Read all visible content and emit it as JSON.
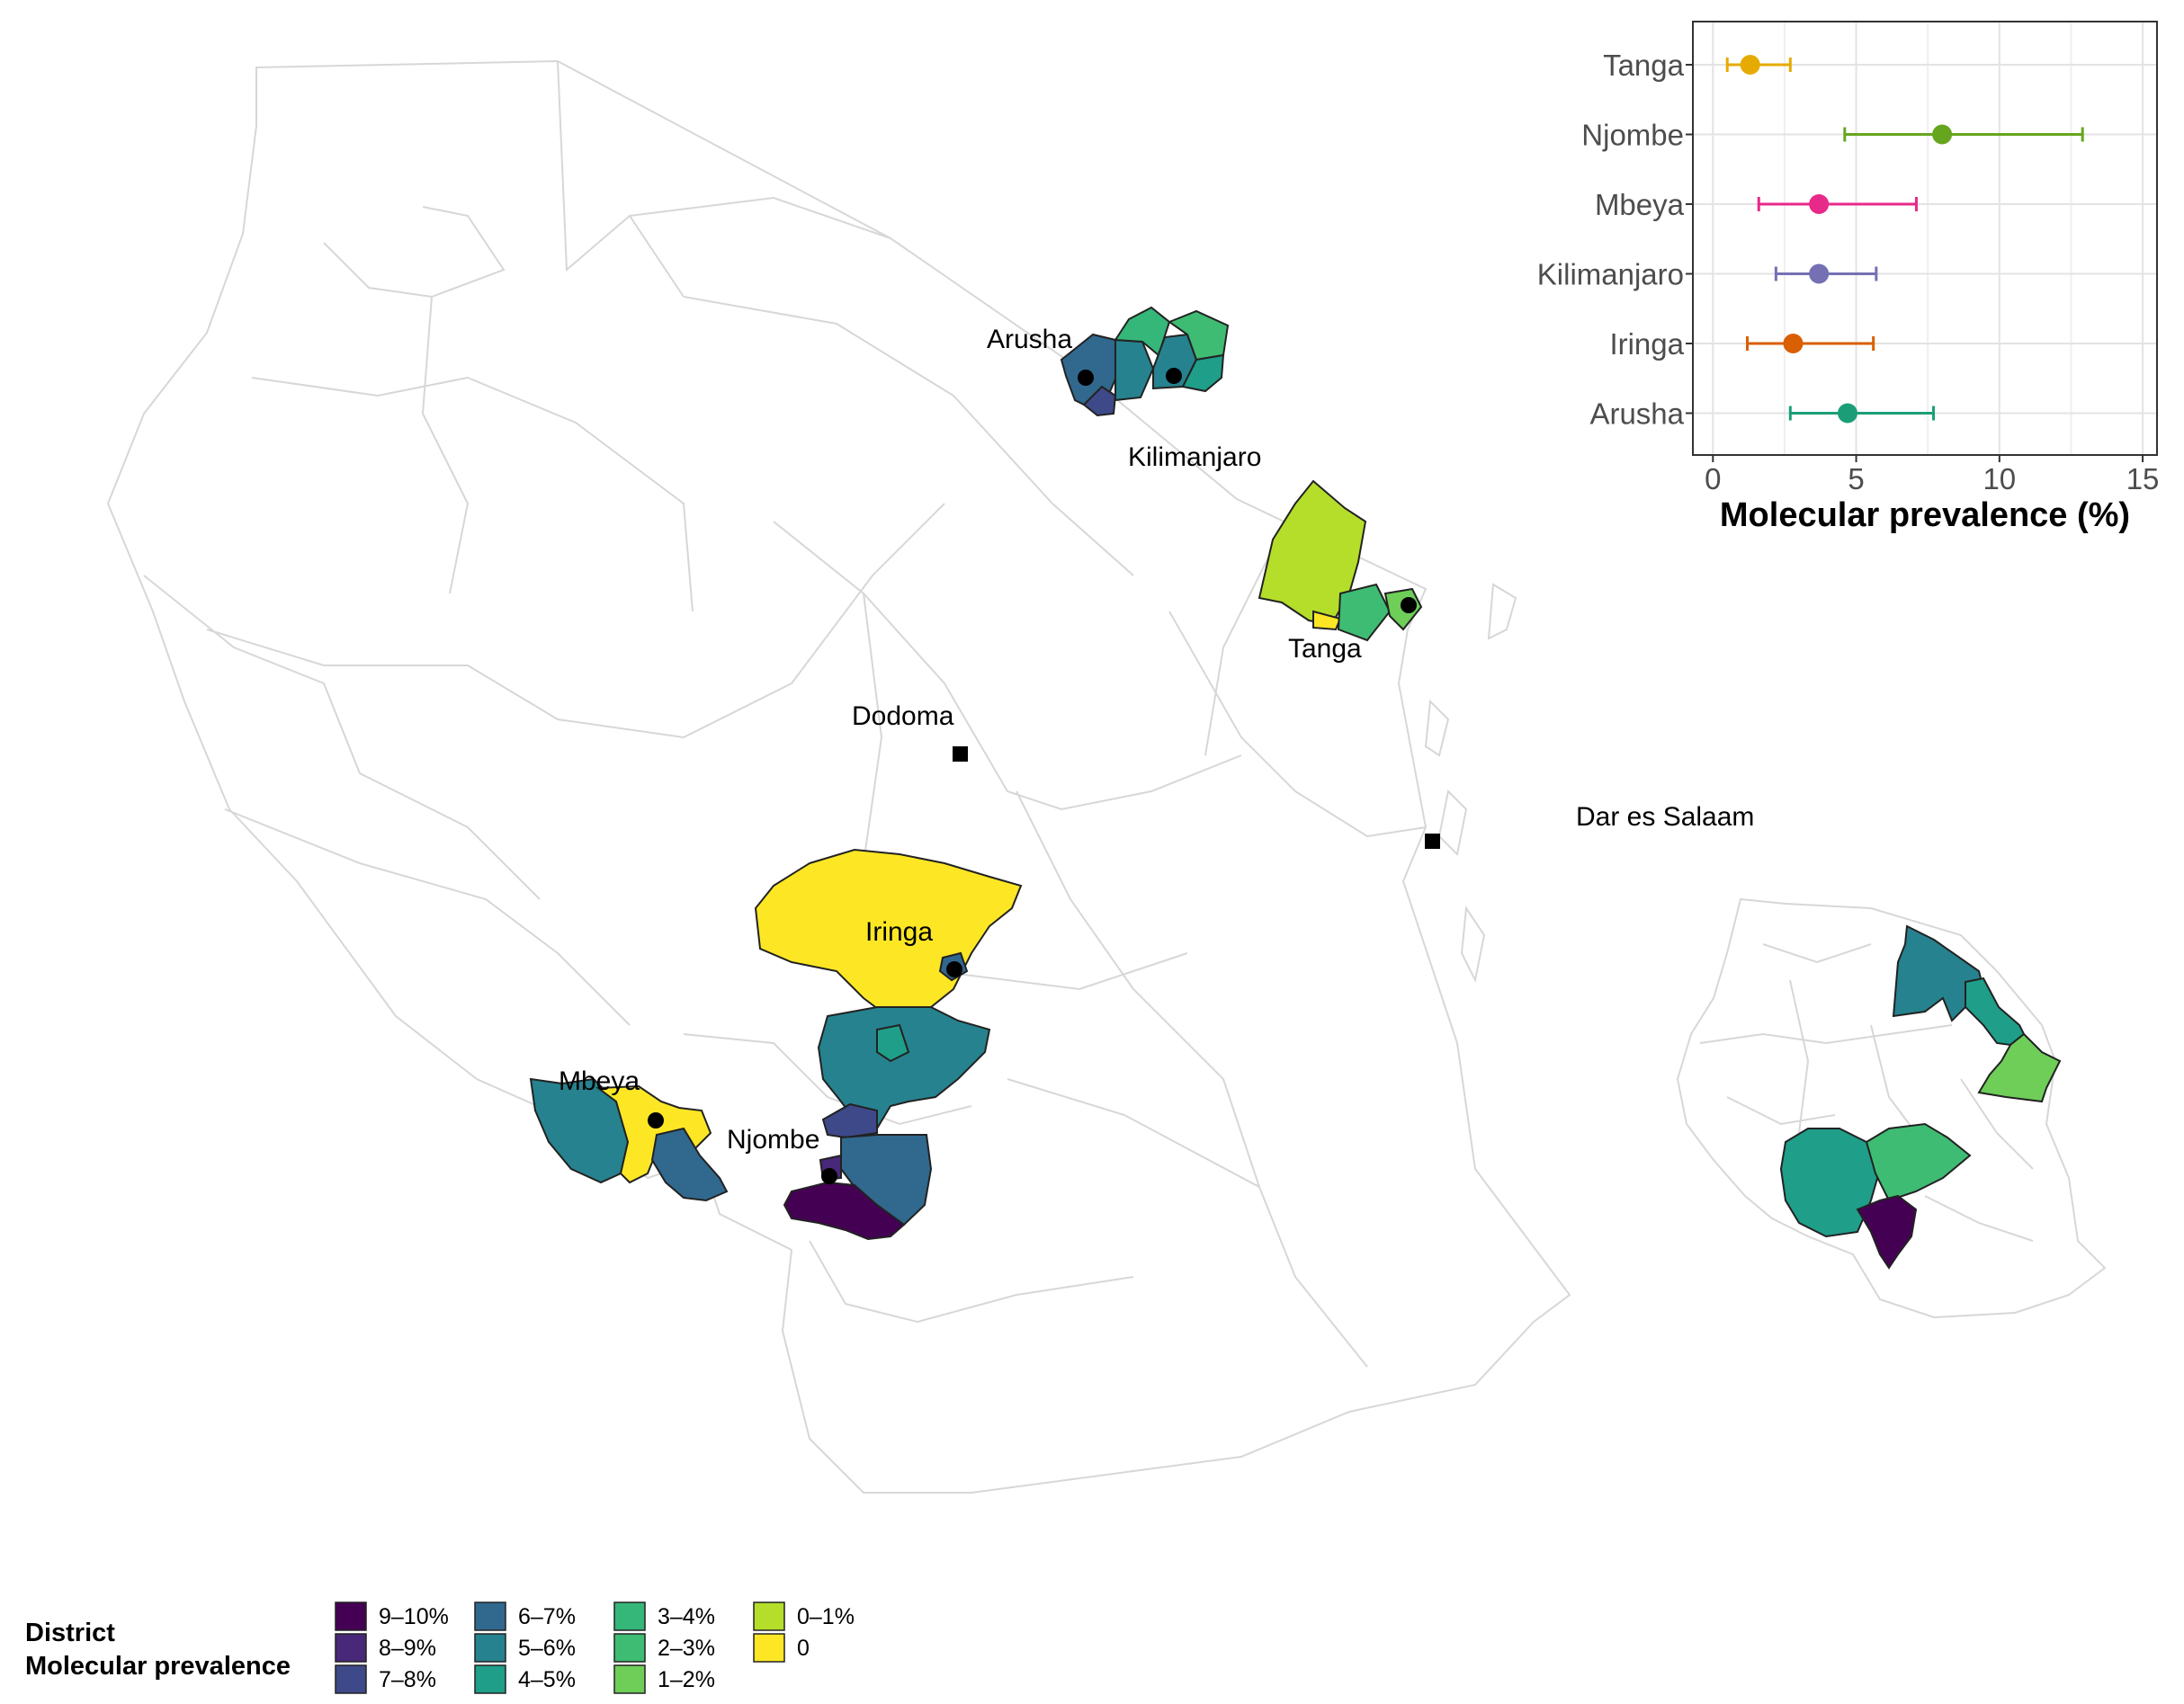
{
  "colors": {
    "p9_10": "#440154",
    "p8_9": "#482878",
    "p7_8": "#3e4989",
    "p6_7": "#31688e",
    "p5_6": "#26828e",
    "p4_5": "#1f9e89",
    "p3_4": "#35b779",
    "p2_3": "#3fbc73",
    "p1_2": "#6ece58",
    "p0_1": "#b5de2b",
    "p0": "#fde725",
    "tanga": "#e6ab02",
    "njombe": "#66a61e",
    "mbeya": "#e7298a",
    "kilimanjaro": "#7570b3",
    "iringa": "#d95f02",
    "arusha": "#1b9e77"
  },
  "map": {
    "labels": {
      "arusha": "Arusha",
      "kilimanjaro": "Kilimanjaro",
      "tanga": "Tanga",
      "dodoma": "Dodoma",
      "dar": "Dar es Salaam",
      "iringa": "Iringa",
      "mbeya": "Mbeya",
      "njombe": "Njombe"
    }
  },
  "chart_data": {
    "type": "scatter",
    "xlabel": "Molecular prevalence (%)",
    "xlim": [
      0,
      15
    ],
    "xticks": [
      "0",
      "5",
      "10",
      "15"
    ],
    "categories": [
      "Arusha",
      "Iringa",
      "Kilimanjaro",
      "Mbeya",
      "Njombe",
      "Tanga"
    ],
    "points": [
      {
        "region": "Tanga",
        "value": 1.3,
        "low": 0.5,
        "high": 2.7
      },
      {
        "region": "Njombe",
        "value": 8.0,
        "low": 4.6,
        "high": 12.9
      },
      {
        "region": "Mbeya",
        "value": 3.7,
        "low": 1.6,
        "high": 7.1
      },
      {
        "region": "Kilimanjaro",
        "value": 3.7,
        "low": 2.2,
        "high": 5.7
      },
      {
        "region": "Iringa",
        "value": 2.8,
        "low": 1.2,
        "high": 5.6
      },
      {
        "region": "Arusha",
        "value": 4.7,
        "low": 2.7,
        "high": 7.7
      }
    ]
  },
  "legend": {
    "title_line1": "District",
    "title_line2": "Molecular prevalence",
    "items": [
      {
        "label": "9–10%",
        "color": "#440154"
      },
      {
        "label": "8–9%",
        "color": "#482878"
      },
      {
        "label": "7–8%",
        "color": "#3e4989"
      },
      {
        "label": "6–7%",
        "color": "#31688e"
      },
      {
        "label": "5–6%",
        "color": "#26828e"
      },
      {
        "label": "4–5%",
        "color": "#1f9e89"
      },
      {
        "label": "3–4%",
        "color": "#35b779"
      },
      {
        "label": "2–3%",
        "color": "#3fbc73"
      },
      {
        "label": "1–2%",
        "color": "#6ece58"
      },
      {
        "label": "0–1%",
        "color": "#b5de2b"
      },
      {
        "label": "0",
        "color": "#fde725"
      }
    ]
  }
}
